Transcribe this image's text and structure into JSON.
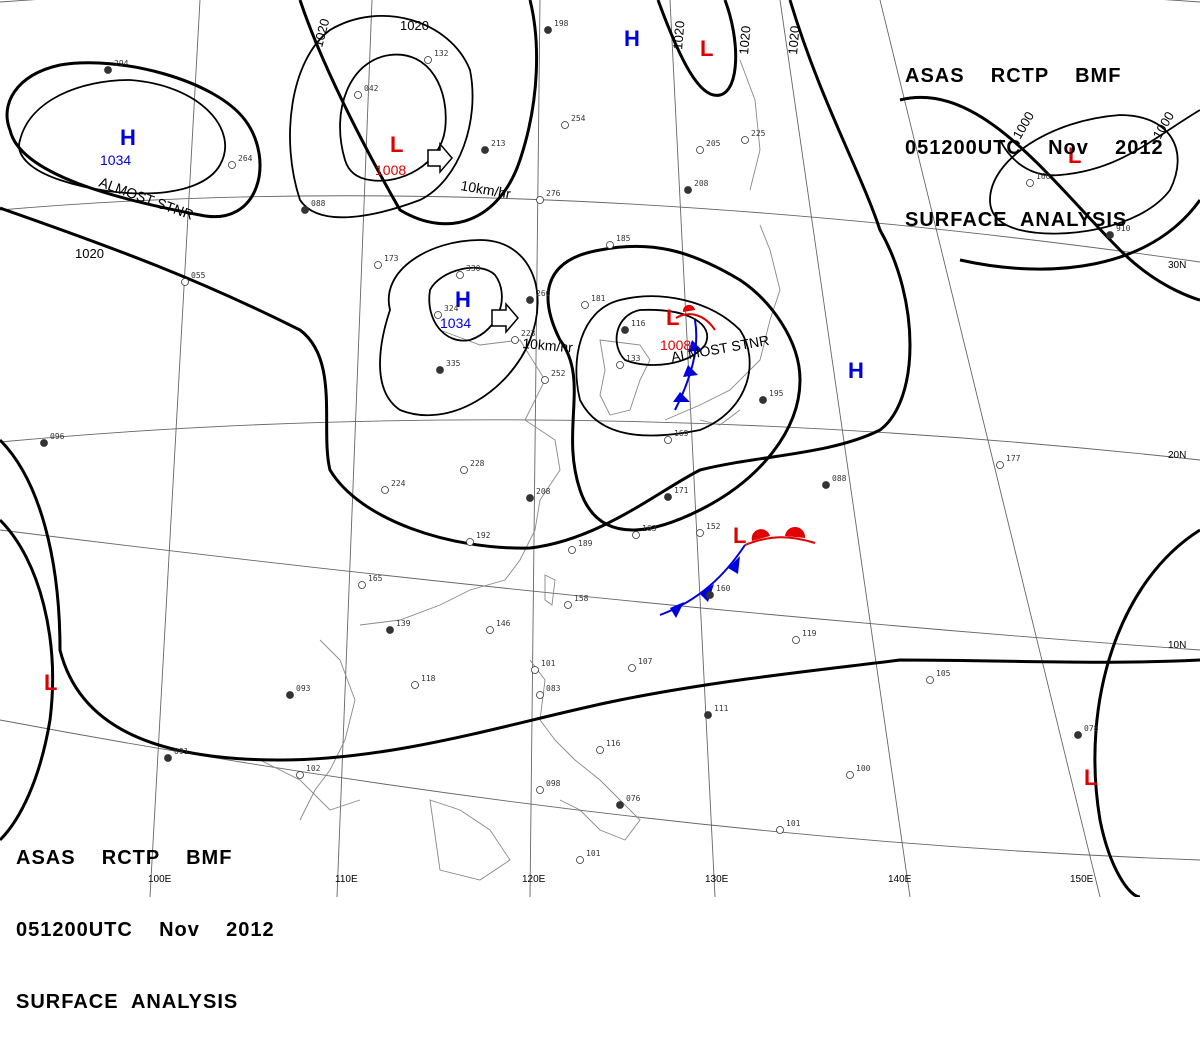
{
  "header_top": {
    "line1": "ASAS    RCTP    BMF",
    "line2": "051200UTC    Nov    2012",
    "line3": "SURFACE  ANALYSIS"
  },
  "header_bottom": {
    "line1": "ASAS    RCTP    BMF",
    "line2": "051200UTC    Nov    2012",
    "line3": "SURFACE  ANALYSIS"
  },
  "colors": {
    "high": "#0000dd",
    "low": "#e00000",
    "isobar": "#000000",
    "grid": "#555555",
    "coast": "#888888"
  },
  "isobars": {
    "label_1020": "1020",
    "label_1000": "1000"
  },
  "pressure_centers": [
    {
      "type": "H",
      "value": "1034",
      "note": "ALMOST STNR",
      "color": "#0000dd"
    },
    {
      "type": "L",
      "value": "1008",
      "color": "#e00000"
    },
    {
      "type": "H",
      "value": "1034",
      "color": "#0000dd"
    },
    {
      "type": "L",
      "value": "1008",
      "note": "ALMOST STNR",
      "color": "#e00000"
    },
    {
      "type": "H",
      "value": "",
      "color": "#0000dd"
    },
    {
      "type": "H",
      "value": "",
      "color": "#0000dd"
    },
    {
      "type": "L",
      "value": "",
      "color": "#e00000"
    },
    {
      "type": "L",
      "value": "",
      "color": "#e00000"
    },
    {
      "type": "L",
      "value": "",
      "color": "#e00000"
    },
    {
      "type": "L",
      "value": "",
      "color": "#e00000"
    },
    {
      "type": "L",
      "value": "",
      "color": "#e00000"
    }
  ],
  "motions": [
    {
      "label": "10km/hr"
    },
    {
      "label": "10km/hr"
    }
  ],
  "lat_labels": [
    "30N",
    "20N",
    "10N"
  ],
  "lon_labels": [
    "100E",
    "110E",
    "120E",
    "130E",
    "140E",
    "150E"
  ],
  "station_samples": [
    "294",
    "042",
    "132",
    "213",
    "254",
    "276",
    "198",
    "205",
    "225",
    "208",
    "185",
    "181",
    "260",
    "330",
    "324",
    "335",
    "223",
    "252",
    "116",
    "133",
    "169",
    "195",
    "228",
    "224",
    "208",
    "192",
    "189",
    "171",
    "152",
    "163",
    "160",
    "158",
    "165",
    "139",
    "146",
    "118",
    "093",
    "101",
    "083",
    "111",
    "116",
    "098",
    "076",
    "101",
    "102",
    "091",
    "119",
    "105",
    "078",
    "100",
    "101",
    "088",
    "177",
    "166",
    "910",
    "055",
    "264",
    "088",
    "173",
    "107",
    "096"
  ]
}
